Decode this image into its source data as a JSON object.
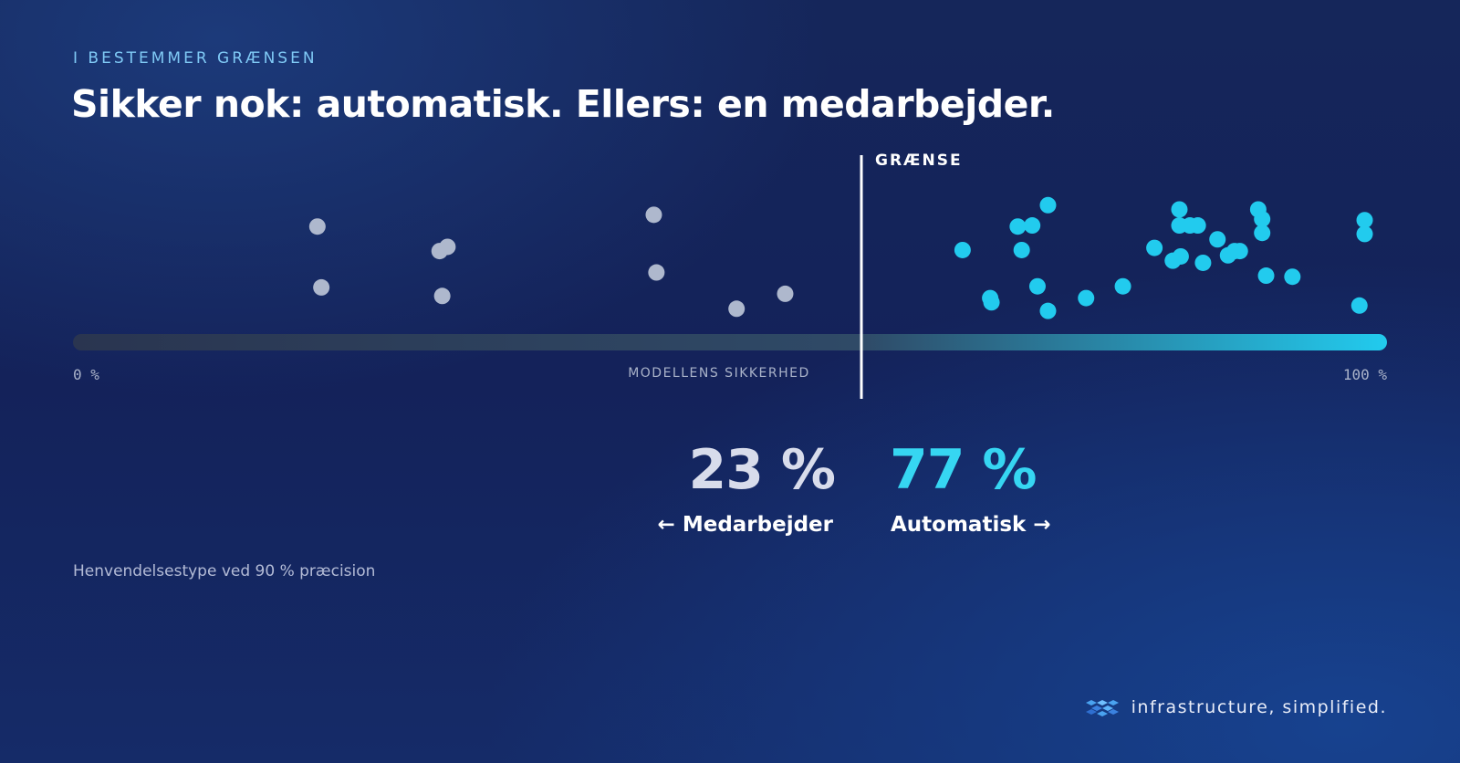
{
  "eyebrow": "I BESTEMMER GRÆNSEN",
  "title": "Sikker nok: automatisk. Ellers: en medarbejder.",
  "chart_data": {
    "type": "scatter",
    "xlabel": "MODELLENS SIKKERHED",
    "x_ticks": [
      "0 %",
      "100 %"
    ],
    "xlim": [
      0,
      100
    ],
    "threshold": {
      "label": "GRÆNSE",
      "value": 60
    },
    "colors": {
      "below": "#aeb8cd",
      "above": "#22cbee",
      "track_start": "#2a3550",
      "track_end": "#22cbee",
      "threshold": "#ffffff"
    },
    "points": [
      {
        "x": 18.6,
        "lane": 0.87
      },
      {
        "x": 18.9,
        "lane": 0.3
      },
      {
        "x": 27.9,
        "lane": 0.64
      },
      {
        "x": 28.5,
        "lane": 0.68
      },
      {
        "x": 28.1,
        "lane": 0.22
      },
      {
        "x": 44.2,
        "lane": 0.98
      },
      {
        "x": 44.4,
        "lane": 0.44
      },
      {
        "x": 50.5,
        "lane": 0.1
      },
      {
        "x": 54.2,
        "lane": 0.24
      },
      {
        "x": 67.7,
        "lane": 0.65
      },
      {
        "x": 69.8,
        "lane": 0.2
      },
      {
        "x": 69.9,
        "lane": 0.16
      },
      {
        "x": 71.9,
        "lane": 0.87
      },
      {
        "x": 72.2,
        "lane": 0.65
      },
      {
        "x": 73.0,
        "lane": 0.88
      },
      {
        "x": 73.4,
        "lane": 0.31
      },
      {
        "x": 74.2,
        "lane": 0.08
      },
      {
        "x": 74.2,
        "lane": 1.07
      },
      {
        "x": 77.1,
        "lane": 0.2
      },
      {
        "x": 79.9,
        "lane": 0.31
      },
      {
        "x": 82.3,
        "lane": 0.67
      },
      {
        "x": 83.7,
        "lane": 0.55
      },
      {
        "x": 84.3,
        "lane": 0.59
      },
      {
        "x": 84.2,
        "lane": 0.88
      },
      {
        "x": 84.2,
        "lane": 1.03
      },
      {
        "x": 85.0,
        "lane": 0.88
      },
      {
        "x": 85.6,
        "lane": 0.88
      },
      {
        "x": 86.0,
        "lane": 0.53
      },
      {
        "x": 87.1,
        "lane": 0.75
      },
      {
        "x": 87.9,
        "lane": 0.6
      },
      {
        "x": 88.4,
        "lane": 0.64
      },
      {
        "x": 88.8,
        "lane": 0.64
      },
      {
        "x": 90.2,
        "lane": 1.03
      },
      {
        "x": 90.5,
        "lane": 0.94
      },
      {
        "x": 90.5,
        "lane": 0.81
      },
      {
        "x": 90.8,
        "lane": 0.41
      },
      {
        "x": 92.8,
        "lane": 0.4
      },
      {
        "x": 97.9,
        "lane": 0.13
      },
      {
        "x": 98.3,
        "lane": 0.8
      },
      {
        "x": 98.3,
        "lane": 0.93
      }
    ]
  },
  "stats": {
    "left": {
      "value": "23 %",
      "label": "← Medarbejder"
    },
    "right": {
      "value": "77 %",
      "label": "Automatisk →"
    }
  },
  "footnote": "Henvendelsestype ved 90 % præcision",
  "brand": {
    "text": "infrastructure, simplified.",
    "icon": "cube-logo-icon"
  }
}
